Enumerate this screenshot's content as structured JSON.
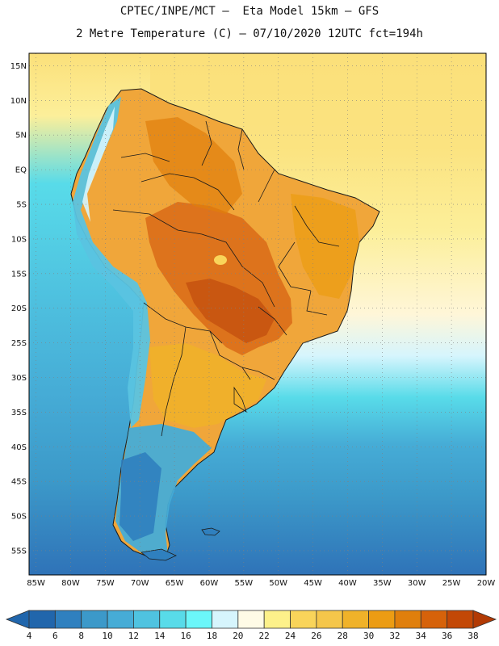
{
  "title_line1": "CPTEC/INPE/MCT –  Eta Model 15km – GFS",
  "title_line2": "2 Metre Temperature (C) – 07/10/2020 12UTC fct=194h",
  "map": {
    "lat_labels": [
      "15N",
      "10N",
      "5N",
      "EQ",
      "5S",
      "10S",
      "15S",
      "20S",
      "25S",
      "30S",
      "35S",
      "40S",
      "45S",
      "50S",
      "55S"
    ],
    "lat_values": [
      15,
      10,
      5,
      0,
      -5,
      -10,
      -15,
      -20,
      -25,
      -30,
      -35,
      -40,
      -45,
      -50,
      -55
    ],
    "lon_labels": [
      "85W",
      "80W",
      "75W",
      "70W",
      "65W",
      "60W",
      "55W",
      "50W",
      "45W",
      "40W",
      "35W",
      "30W",
      "25W",
      "20W"
    ],
    "lon_values": [
      -85,
      -80,
      -75,
      -70,
      -65,
      -60,
      -55,
      -50,
      -45,
      -40,
      -35,
      -30,
      -25,
      -20
    ],
    "lat_range": [
      -58.5,
      16.8
    ],
    "lon_range": [
      -86.0,
      -20.0
    ]
  },
  "colorbar": {
    "labels": [
      "4",
      "6",
      "8",
      "10",
      "12",
      "14",
      "16",
      "18",
      "20",
      "22",
      "24",
      "26",
      "28",
      "30",
      "32",
      "34",
      "36",
      "38"
    ],
    "colors": [
      "#2166ac",
      "#2f80bf",
      "#3c99c9",
      "#46acd6",
      "#4fc3e0",
      "#58dbe9",
      "#6bf6f9",
      "#d6f5fd",
      "#fffbe6",
      "#fdf18a",
      "#f9d45a",
      "#f5c64a",
      "#f0b229",
      "#ec9c13",
      "#e07f0c",
      "#d6620a",
      "#c34806",
      "#b23a04"
    ]
  },
  "colors": {
    "deep_ocean": "#2f73b8",
    "ocean": "#3c99c9",
    "tropical_sea": "#fbe07a",
    "land_warm": "#f0a63a",
    "land_hot": "#d96a17",
    "land_hottest": "#c4500f",
    "andes_cool": "#5ac3e0",
    "patagonia": "#2f80bf",
    "border": "#1a1a1a"
  }
}
